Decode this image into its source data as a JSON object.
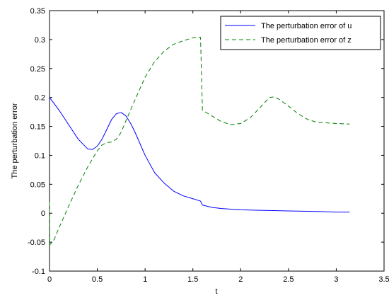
{
  "chart_data": {
    "type": "line",
    "title": "",
    "xlabel": "t",
    "ylabel": "The perturbation error",
    "xlim": [
      0,
      3.5
    ],
    "ylim": [
      -0.1,
      0.35
    ],
    "x_ticks": [
      "0",
      "0.5",
      "1",
      "1.5",
      "2",
      "2.5",
      "3",
      "3.5"
    ],
    "y_ticks": [
      "-0.1",
      "-0.05",
      "0",
      "0.05",
      "0.1",
      "0.15",
      "0.2",
      "0.25",
      "0.3",
      "0.35"
    ],
    "grid": false,
    "legend_position": "top-right",
    "series": [
      {
        "name": "The perturbation error of u",
        "color": "#0000ff",
        "dash": "solid",
        "points": [
          [
            0,
            0.2
          ],
          [
            0.1,
            0.178
          ],
          [
            0.2,
            0.153
          ],
          [
            0.3,
            0.128
          ],
          [
            0.4,
            0.111
          ],
          [
            0.45,
            0.11
          ],
          [
            0.5,
            0.116
          ],
          [
            0.55,
            0.128
          ],
          [
            0.6,
            0.145
          ],
          [
            0.65,
            0.162
          ],
          [
            0.7,
            0.172
          ],
          [
            0.75,
            0.174
          ],
          [
            0.8,
            0.168
          ],
          [
            0.85,
            0.155
          ],
          [
            0.9,
            0.138
          ],
          [
            1.0,
            0.1
          ],
          [
            1.1,
            0.07
          ],
          [
            1.2,
            0.052
          ],
          [
            1.3,
            0.038
          ],
          [
            1.4,
            0.03
          ],
          [
            1.5,
            0.025
          ],
          [
            1.58,
            0.021
          ],
          [
            1.6,
            0.014
          ],
          [
            1.7,
            0.01
          ],
          [
            1.8,
            0.008
          ],
          [
            2.0,
            0.006
          ],
          [
            2.2,
            0.005
          ],
          [
            2.5,
            0.004
          ],
          [
            2.8,
            0.003
          ],
          [
            3.0,
            0.002
          ],
          [
            3.14,
            0.002
          ]
        ]
      },
      {
        "name": "The perturbation error of z",
        "color": "#008000",
        "dash": "dashed",
        "points": [
          [
            0,
            0.02
          ],
          [
            0.002,
            -0.055
          ],
          [
            0.05,
            -0.045
          ],
          [
            0.1,
            -0.025
          ],
          [
            0.2,
            0.012
          ],
          [
            0.3,
            0.048
          ],
          [
            0.4,
            0.08
          ],
          [
            0.5,
            0.108
          ],
          [
            0.55,
            0.118
          ],
          [
            0.6,
            0.122
          ],
          [
            0.65,
            0.123
          ],
          [
            0.7,
            0.128
          ],
          [
            0.75,
            0.14
          ],
          [
            0.8,
            0.16
          ],
          [
            0.9,
            0.198
          ],
          [
            1.0,
            0.235
          ],
          [
            1.1,
            0.262
          ],
          [
            1.2,
            0.28
          ],
          [
            1.3,
            0.292
          ],
          [
            1.4,
            0.298
          ],
          [
            1.5,
            0.303
          ],
          [
            1.58,
            0.304
          ],
          [
            1.6,
            0.178
          ],
          [
            1.7,
            0.168
          ],
          [
            1.8,
            0.158
          ],
          [
            1.9,
            0.153
          ],
          [
            2.0,
            0.155
          ],
          [
            2.1,
            0.165
          ],
          [
            2.2,
            0.182
          ],
          [
            2.3,
            0.2
          ],
          [
            2.35,
            0.201
          ],
          [
            2.4,
            0.197
          ],
          [
            2.5,
            0.185
          ],
          [
            2.6,
            0.172
          ],
          [
            2.7,
            0.162
          ],
          [
            2.8,
            0.157
          ],
          [
            3.0,
            0.155
          ],
          [
            3.14,
            0.154
          ]
        ]
      }
    ]
  }
}
